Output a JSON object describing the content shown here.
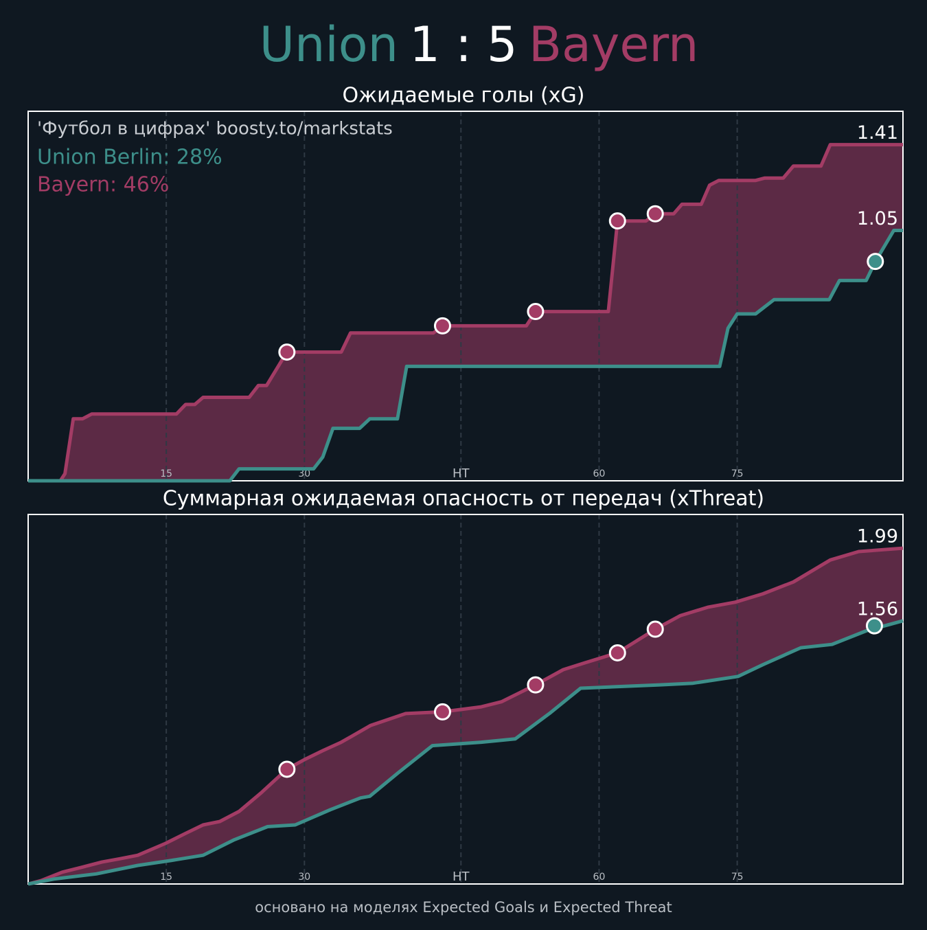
{
  "header": {
    "home": "Union",
    "score": "1 : 5",
    "away": "Bayern",
    "home_color": "#3d8f8a",
    "away_color": "#a33c65"
  },
  "annotations": [
    {
      "text": "'Футбол в цифрах' boosty.to/markstats",
      "color": "#c9cdd2"
    },
    {
      "text": "Union Berlin: 28%",
      "color": "#3d8f8a"
    },
    {
      "text": "Bayern: 46%",
      "color": "#a33c65"
    }
  ],
  "footer": "основано на моделях Expected Goals и Expected Threat",
  "chart_data": [
    {
      "type": "line",
      "title": "Ожидаемые голы (xG)",
      "xlim": [
        0,
        95
      ],
      "ylim": [
        0,
        1.55
      ],
      "xticks": [
        15,
        30,
        {
          "value": 47,
          "label": "HT"
        },
        {
          "value": 62,
          "label": "60"
        },
        {
          "value": 77,
          "label": "75"
        }
      ],
      "grid": true,
      "fill_color": "#5c2a45",
      "series": [
        {
          "color": "#a33c65",
          "x": [
            0,
            3.5,
            4.0,
            4.9,
            5.9,
            6.9,
            16.1,
            17.1,
            18.1,
            19.0,
            24.0,
            25.0,
            25.9,
            28.1,
            34.0,
            35.0,
            44.0,
            45.0,
            54.1,
            55.1,
            63.0,
            64.0,
            67.1,
            68.1,
            70.1,
            71.0,
            73.1,
            74.0,
            75.0,
            79.0,
            80.0,
            82.0,
            83.1,
            86.1,
            87.1,
            95
          ],
          "values": [
            0,
            0,
            0.03,
            0.26,
            0.26,
            0.28,
            0.28,
            0.32,
            0.32,
            0.35,
            0.35,
            0.4,
            0.4,
            0.54,
            0.54,
            0.62,
            0.62,
            0.65,
            0.65,
            0.71,
            0.71,
            1.09,
            1.09,
            1.12,
            1.12,
            1.16,
            1.16,
            1.24,
            1.26,
            1.26,
            1.27,
            1.27,
            1.32,
            1.32,
            1.41,
            1.41
          ],
          "goals": {
            "x": [
              28.1,
              45.0,
              55.1,
              64.0,
              68.1
            ],
            "values": [
              0.54,
              0.65,
              0.71,
              1.09,
              1.12
            ]
          }
        },
        {
          "color": "#3d8f8a",
          "x": [
            0,
            21.9,
            22.9,
            31.0,
            32.0,
            33.1,
            36.0,
            37.1,
            40.1,
            41.1,
            75.1,
            76.0,
            77.0,
            79.0,
            81.0,
            87.0,
            88.1,
            91.0,
            92.0,
            94.0,
            95
          ],
          "values": [
            0,
            0,
            0.05,
            0.05,
            0.1,
            0.22,
            0.22,
            0.26,
            0.26,
            0.48,
            0.48,
            0.64,
            0.7,
            0.7,
            0.76,
            0.76,
            0.84,
            0.84,
            0.92,
            1.05,
            1.05
          ],
          "goals": {
            "x": [
              92.0
            ],
            "values": [
              0.92
            ]
          }
        }
      ]
    },
    {
      "type": "line",
      "title": "Суммарная ожидаемая опасность от передач (xThreat)",
      "xlim": [
        0,
        95
      ],
      "ylim": [
        0,
        2.19
      ],
      "xticks": [
        15,
        30,
        {
          "value": 47,
          "label": "HT"
        },
        {
          "value": 62,
          "label": "60"
        },
        {
          "value": 77,
          "label": "75"
        }
      ],
      "grid": true,
      "fill_color": "#5c2a45",
      "series": [
        {
          "color": "#a33c65",
          "x": [
            0,
            1.4,
            3.7,
            5.9,
            8.0,
            10.0,
            11.9,
            14.9,
            17.1,
            19.0,
            20.8,
            22.9,
            25.3,
            28.1,
            30.1,
            32.0,
            34.0,
            37.2,
            41.0,
            45.0,
            49.2,
            51.4,
            55.1,
            58.1,
            60.4,
            64.0,
            68.1,
            70.8,
            73.8,
            76.8,
            79.8,
            83.1,
            87.1,
            90.2,
            95
          ],
          "values": [
            0,
            0.02,
            0.07,
            0.1,
            0.13,
            0.15,
            0.17,
            0.24,
            0.3,
            0.35,
            0.37,
            0.43,
            0.54,
            0.68,
            0.74,
            0.79,
            0.84,
            0.94,
            1.01,
            1.02,
            1.05,
            1.08,
            1.18,
            1.27,
            1.31,
            1.37,
            1.51,
            1.59,
            1.64,
            1.67,
            1.72,
            1.79,
            1.92,
            1.97,
            1.99
          ],
          "goals": {
            "x": [
              28.1,
              45.0,
              55.1,
              64.0,
              68.1
            ],
            "values": [
              0.68,
              1.02,
              1.18,
              1.37,
              1.51
            ]
          }
        },
        {
          "color": "#3d8f8a",
          "x": [
            0,
            2.9,
            7.4,
            11.9,
            15.6,
            19.0,
            22.3,
            26.0,
            29.0,
            32.8,
            36.1,
            37.1,
            40.2,
            43.9,
            49.2,
            52.9,
            56.6,
            60.0,
            68.6,
            72.2,
            77.1,
            79.8,
            83.9,
            87.3,
            91.0,
            95
          ],
          "values": [
            0,
            0.03,
            0.06,
            0.11,
            0.14,
            0.17,
            0.26,
            0.34,
            0.35,
            0.44,
            0.51,
            0.52,
            0.66,
            0.82,
            0.84,
            0.86,
            1.01,
            1.16,
            1.18,
            1.19,
            1.23,
            1.3,
            1.4,
            1.42,
            1.5,
            1.56
          ],
          "goals": {
            "x": [
              91.9
            ],
            "values": [
              1.53
            ]
          }
        }
      ]
    }
  ]
}
